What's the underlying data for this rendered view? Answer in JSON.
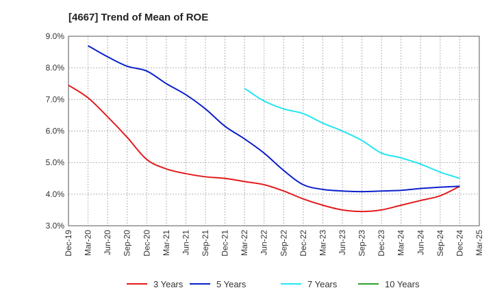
{
  "chart_data": {
    "type": "line",
    "title": "[4667]  Trend of Mean of ROE",
    "xlabel": "",
    "ylabel": "",
    "grid": true,
    "legend_placement": "bottom",
    "x_ticks": [
      "Dec-19",
      "Mar-20",
      "Jun-20",
      "Sep-20",
      "Dec-20",
      "Mar-21",
      "Jun-21",
      "Sep-21",
      "Dec-21",
      "Mar-22",
      "Jun-22",
      "Sep-22",
      "Dec-22",
      "Mar-23",
      "Jun-23",
      "Sep-23",
      "Dec-23",
      "Mar-24",
      "Jun-24",
      "Sep-24",
      "Dec-24",
      "Mar-25"
    ],
    "y_ticks": [
      "3.0%",
      "4.0%",
      "5.0%",
      "6.0%",
      "7.0%",
      "8.0%",
      "9.0%"
    ],
    "ylim": [
      3.0,
      9.0
    ],
    "series": [
      {
        "name": "3 Years",
        "color": "#e31a1c",
        "x": [
          "Dec-19",
          "Mar-20",
          "Jun-20",
          "Sep-20",
          "Dec-20",
          "Mar-21",
          "Jun-21",
          "Sep-21",
          "Dec-21",
          "Mar-22",
          "Jun-22",
          "Sep-22",
          "Dec-22",
          "Mar-23",
          "Jun-23",
          "Sep-23",
          "Dec-23",
          "Mar-24",
          "Jun-24",
          "Sep-24",
          "Dec-24"
        ],
        "values": [
          7.45,
          7.05,
          6.45,
          5.8,
          5.1,
          4.8,
          4.65,
          4.55,
          4.5,
          4.4,
          4.3,
          4.1,
          3.85,
          3.65,
          3.5,
          3.45,
          3.5,
          3.65,
          3.8,
          3.95,
          4.25
        ]
      },
      {
        "name": "5 Years",
        "color": "#0a1fc9",
        "x": [
          "Mar-20",
          "Jun-20",
          "Sep-20",
          "Dec-20",
          "Mar-21",
          "Jun-21",
          "Sep-21",
          "Dec-21",
          "Mar-22",
          "Jun-22",
          "Sep-22",
          "Dec-22",
          "Mar-23",
          "Jun-23",
          "Sep-23",
          "Dec-23",
          "Mar-24",
          "Jun-24",
          "Sep-24",
          "Dec-24"
        ],
        "values": [
          8.7,
          8.35,
          8.05,
          7.9,
          7.5,
          7.15,
          6.7,
          6.15,
          5.75,
          5.3,
          4.75,
          4.3,
          4.15,
          4.1,
          4.08,
          4.1,
          4.12,
          4.18,
          4.22,
          4.25
        ]
      },
      {
        "name": "7 Years",
        "color": "#22e5f2",
        "x": [
          "Mar-22",
          "Jun-22",
          "Sep-22",
          "Dec-22",
          "Mar-23",
          "Jun-23",
          "Sep-23",
          "Dec-23",
          "Mar-24",
          "Jun-24",
          "Sep-24",
          "Dec-24"
        ],
        "values": [
          7.35,
          6.95,
          6.7,
          6.55,
          6.25,
          6.0,
          5.7,
          5.3,
          5.15,
          4.95,
          4.7,
          4.5
        ]
      },
      {
        "name": "10 Years",
        "color": "#2ca02c",
        "x": [],
        "values": []
      }
    ]
  }
}
